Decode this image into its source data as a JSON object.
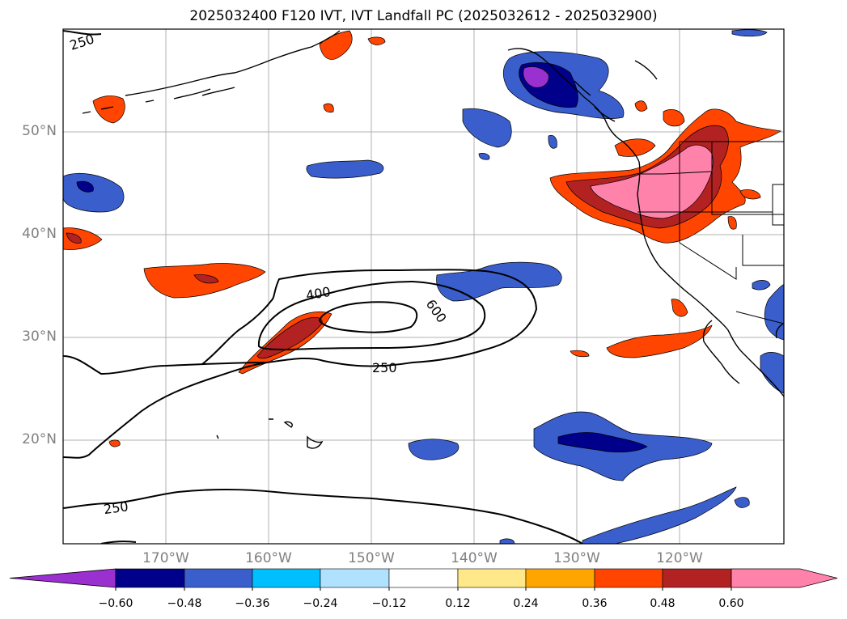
{
  "title": "2025032400 F120 IVT, IVT Landfall PC (2025032612 - 2025032900)",
  "map": {
    "lat_labels": [
      "50°N",
      "40°N",
      "30°N",
      "20°N"
    ],
    "lon_labels": [
      "170°W",
      "160°W",
      "150°W",
      "140°W",
      "130°W",
      "120°W"
    ],
    "contour_labels": [
      "250",
      "400",
      "600",
      "250",
      "250"
    ],
    "contour_levels": [
      250,
      400,
      600
    ],
    "frame_color": "#000000",
    "grid_color": "#b0b0b0"
  },
  "colorbar": {
    "tick_labels": [
      "−0.60",
      "−0.48",
      "−0.36",
      "−0.24",
      "−0.12",
      "0.12",
      "0.24",
      "0.36",
      "0.48",
      "0.60"
    ],
    "colors": [
      "#9b30d0",
      "#00008b",
      "#3a5fcd",
      "#00bfff",
      "#b0e2ff",
      "#ffffff",
      "#ffe88a",
      "#ffa500",
      "#ff4500",
      "#b22222",
      "#ff82ab"
    ]
  }
}
